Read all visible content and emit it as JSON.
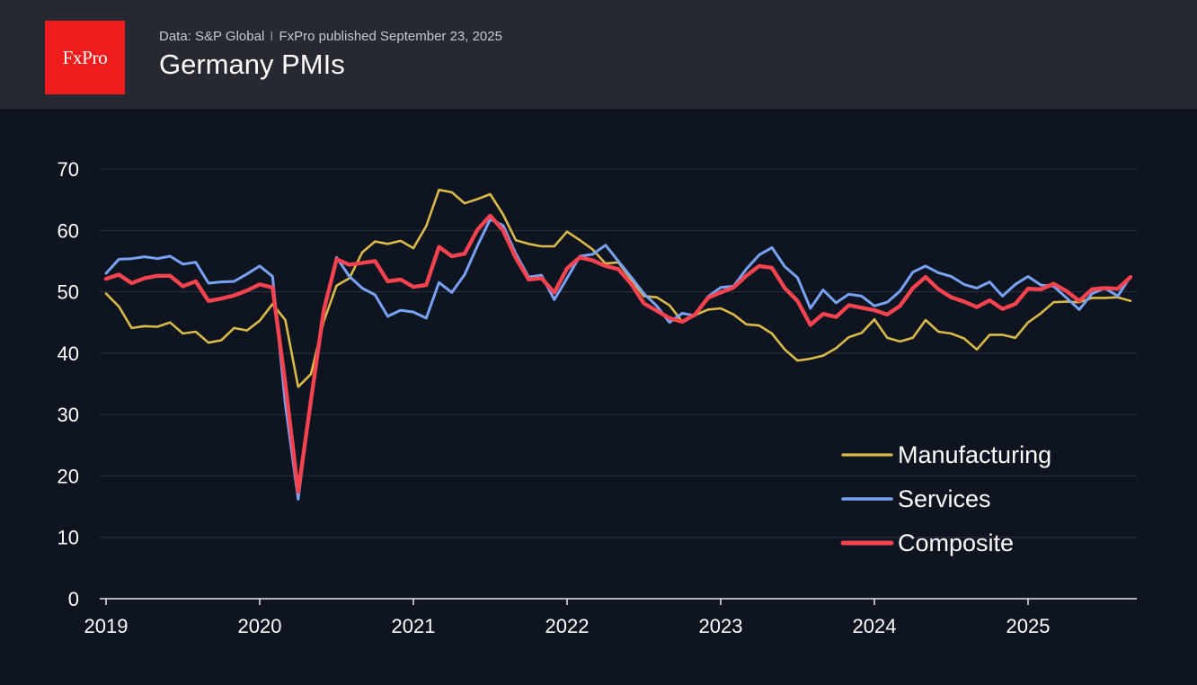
{
  "header": {
    "logo_text": "FxPro",
    "source_text": "Data: S&P Global",
    "separator": "I",
    "published_text": "FxPro published September 23, 2025",
    "title": "Germany PMIs"
  },
  "colors": {
    "background": "#0e1420",
    "header_background": "#262931",
    "logo_red": "#ee1c1c",
    "gridline": "#2b3140"
  },
  "chart_data": {
    "type": "line",
    "title": "Germany PMIs",
    "xlabel": "",
    "ylabel": "",
    "x_start": "2019-01",
    "x_end": "2025-09",
    "xticks": [
      "2019",
      "2020",
      "2021",
      "2022",
      "2023",
      "2024",
      "2025"
    ],
    "ylim": [
      0,
      70
    ],
    "yticks": [
      0,
      10,
      20,
      30,
      40,
      50,
      60,
      70
    ],
    "grid": true,
    "legend": "bottom-right",
    "series": [
      {
        "name": "Manufacturing",
        "color": "#dbb94a",
        "values": [
          49.7,
          47.6,
          44.1,
          44.4,
          44.3,
          45.0,
          43.2,
          43.5,
          41.7,
          42.1,
          44.1,
          43.7,
          45.3,
          48.0,
          45.4,
          34.5,
          36.6,
          45.2,
          51.0,
          52.2,
          56.4,
          58.2,
          57.8,
          58.3,
          57.1,
          60.7,
          66.6,
          66.2,
          64.4,
          65.1,
          65.9,
          62.6,
          58.4,
          57.8,
          57.4,
          57.4,
          59.8,
          58.4,
          56.9,
          54.6,
          54.8,
          52.0,
          49.3,
          49.1,
          47.8,
          45.1,
          46.2,
          47.1,
          47.3,
          46.3,
          44.7,
          44.5,
          43.2,
          40.6,
          38.8,
          39.1,
          39.6,
          40.8,
          42.6,
          43.3,
          45.5,
          42.5,
          41.9,
          42.5,
          45.4,
          43.5,
          43.2,
          42.4,
          40.6,
          43.0,
          43.0,
          42.5,
          45.0,
          46.5,
          48.3,
          48.4,
          48.3,
          49.0,
          49.0,
          49.1,
          48.5
        ]
      },
      {
        "name": "Services",
        "color": "#78a3f5",
        "values": [
          53.0,
          55.3,
          55.4,
          55.7,
          55.4,
          55.8,
          54.5,
          54.8,
          51.4,
          51.6,
          51.7,
          52.9,
          54.2,
          52.5,
          31.7,
          16.2,
          32.6,
          47.3,
          55.6,
          52.5,
          50.6,
          49.5,
          46.0,
          47.0,
          46.7,
          45.7,
          51.5,
          49.9,
          52.8,
          57.5,
          61.8,
          60.8,
          56.2,
          52.4,
          52.7,
          48.7,
          52.2,
          55.8,
          56.1,
          57.6,
          55.0,
          52.4,
          49.7,
          47.7,
          45.0,
          46.5,
          46.1,
          49.2,
          50.7,
          50.9,
          53.7,
          56.0,
          57.2,
          54.1,
          52.3,
          47.3,
          50.3,
          48.2,
          49.6,
          49.3,
          47.7,
          48.3,
          50.1,
          53.2,
          54.2,
          53.1,
          52.5,
          51.2,
          50.6,
          51.6,
          49.3,
          51.2,
          52.5,
          51.1,
          50.9,
          49.0,
          47.1,
          49.7,
          50.6,
          49.3,
          52.5
        ]
      },
      {
        "name": "Composite",
        "color": "#f5434f",
        "values": [
          52.1,
          52.8,
          51.4,
          52.2,
          52.6,
          52.6,
          50.9,
          51.7,
          48.5,
          48.9,
          49.4,
          50.2,
          51.2,
          50.7,
          35.0,
          17.4,
          32.3,
          47.0,
          55.3,
          54.4,
          54.7,
          55.0,
          51.7,
          52.0,
          50.8,
          51.1,
          57.3,
          55.8,
          56.2,
          60.1,
          62.4,
          60.0,
          55.5,
          52.0,
          52.2,
          49.9,
          53.8,
          55.6,
          55.1,
          54.2,
          53.7,
          51.3,
          48.1,
          46.9,
          45.7,
          45.1,
          46.3,
          49.0,
          49.9,
          50.7,
          52.6,
          54.2,
          53.9,
          50.6,
          48.5,
          44.6,
          46.4,
          45.9,
          47.8,
          47.4,
          47.0,
          46.3,
          47.7,
          50.6,
          52.4,
          50.4,
          49.1,
          48.4,
          47.5,
          48.6,
          47.2,
          48.0,
          50.5,
          50.4,
          51.3,
          50.1,
          48.5,
          50.4,
          50.6,
          50.5,
          52.4
        ]
      }
    ]
  }
}
